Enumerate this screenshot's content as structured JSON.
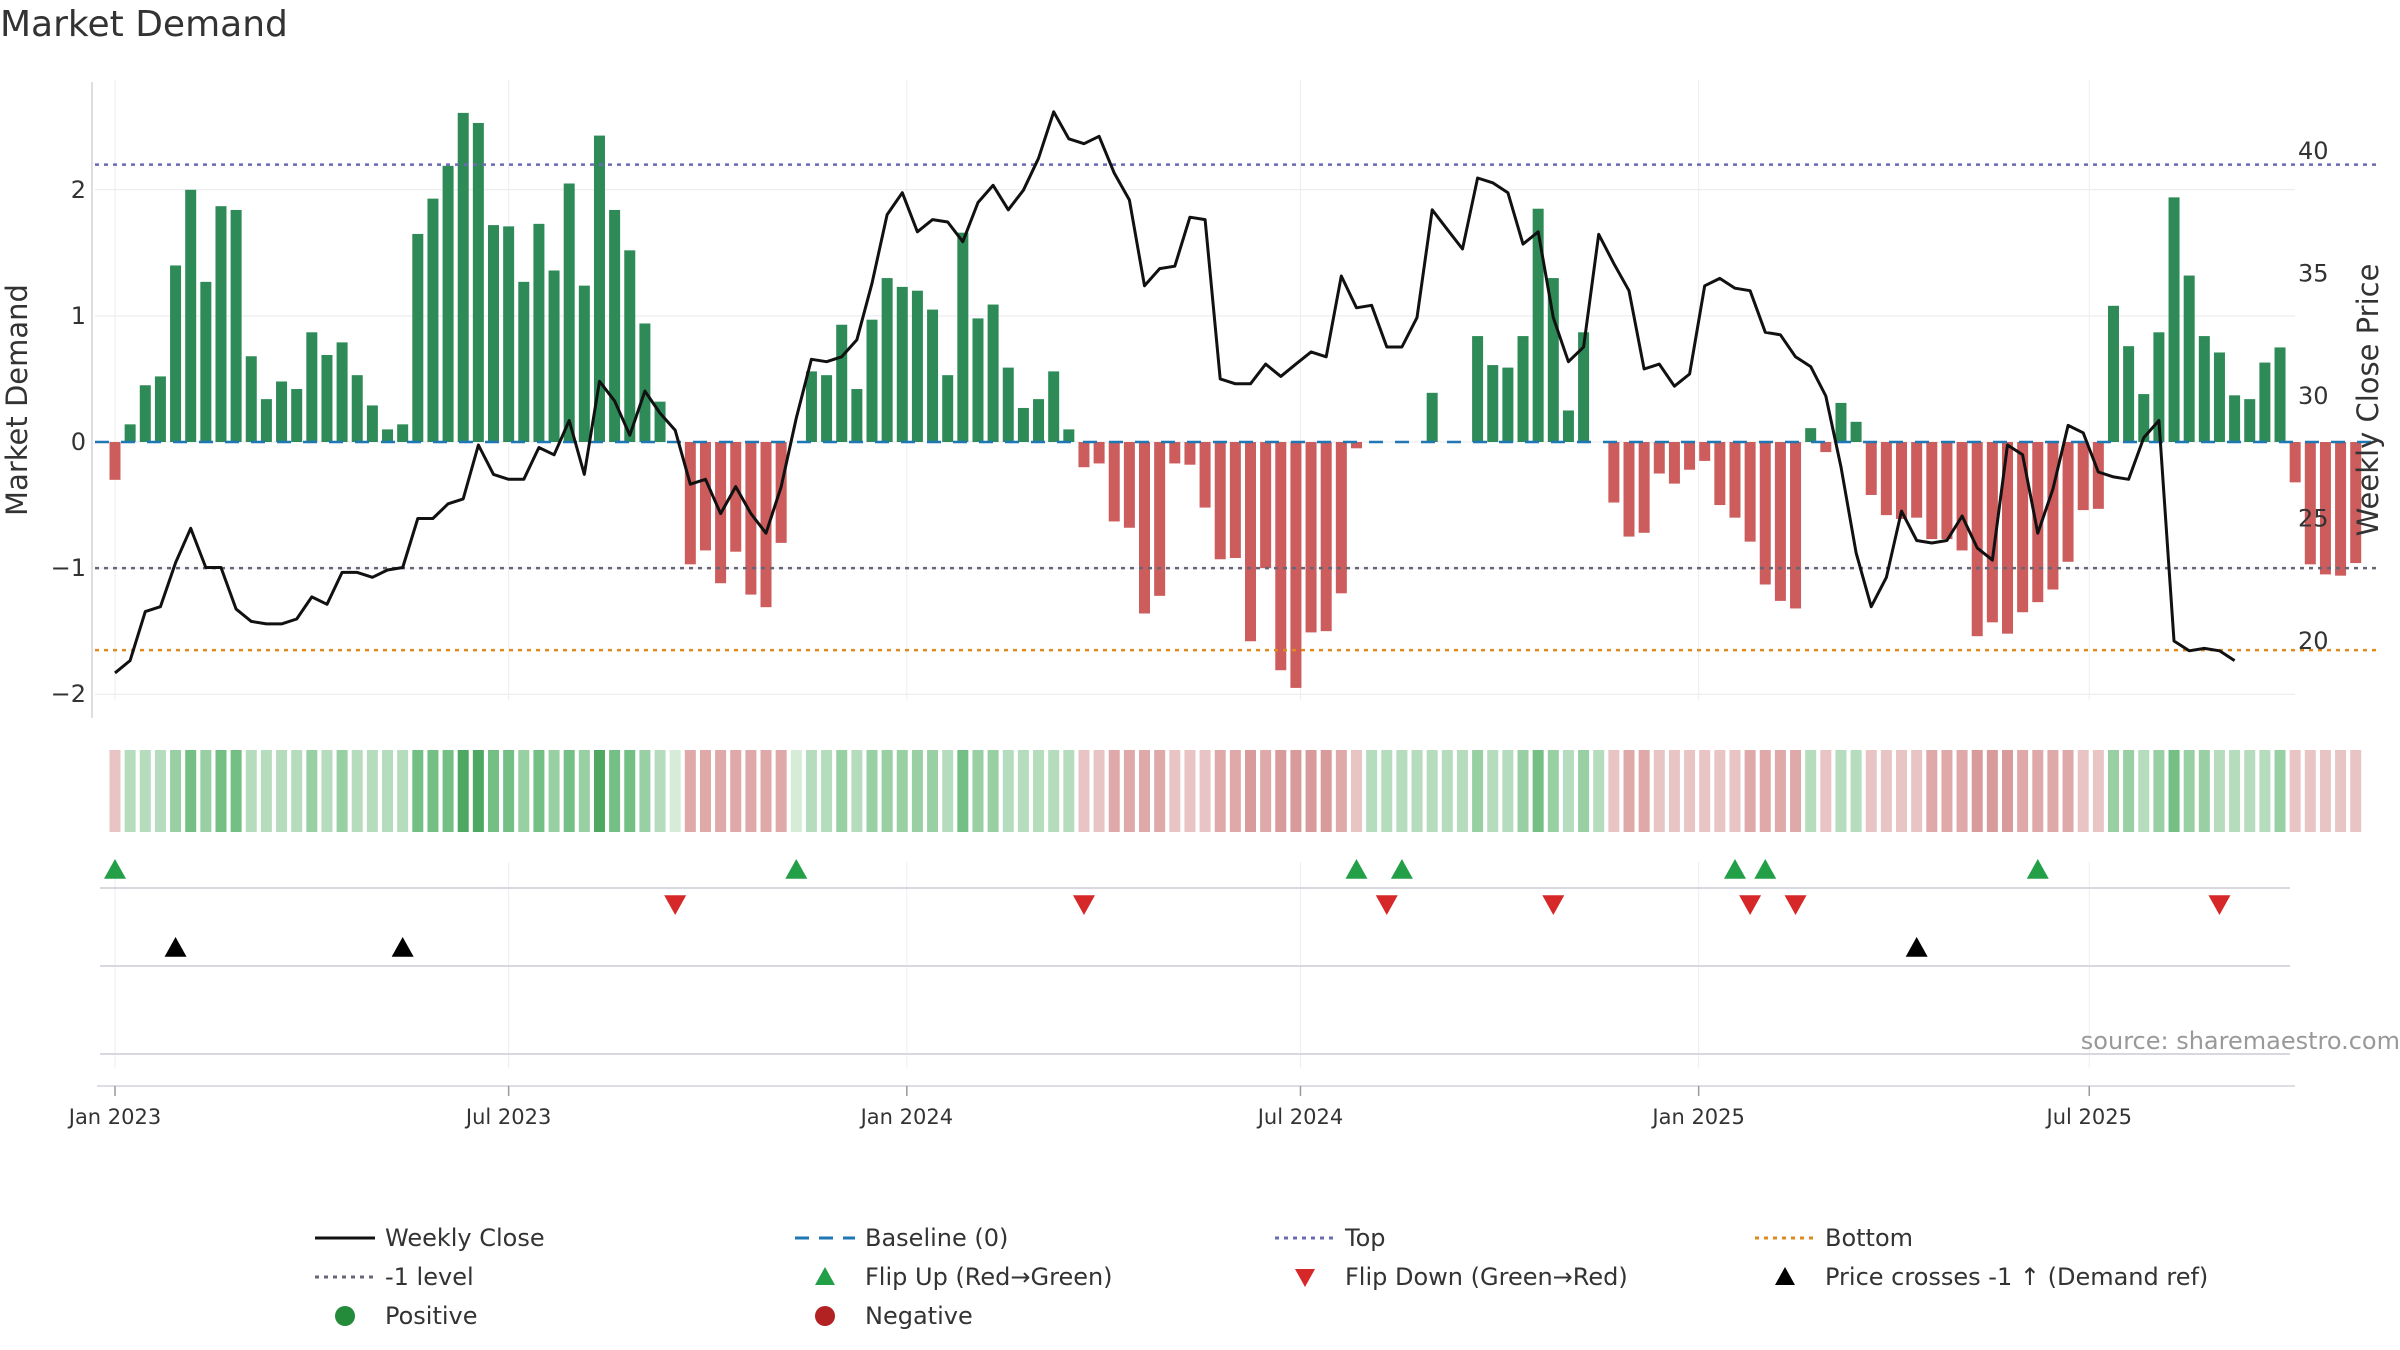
{
  "chart_data": {
    "type": "bar",
    "title": "Market Demand",
    "ylabel_left": "Market Demand",
    "ylabel_right": "Weekly Close Price",
    "ylim_left": [
      -2.2,
      2.85
    ],
    "ylim_right": [
      17,
      43
    ],
    "left_ticks": [
      2,
      1,
      0,
      -1,
      -2
    ],
    "left_tick_labels": [
      "2",
      "1",
      "0",
      "−1",
      "−2"
    ],
    "right_ticks": [
      40,
      35,
      30,
      25,
      20
    ],
    "right_tick_labels": [
      "40",
      "35",
      "30",
      "25",
      "20"
    ],
    "x_ticks": [
      {
        "label": "Jan 2023",
        "week": 0
      },
      {
        "label": "Jul 2023",
        "week": 26
      },
      {
        "label": "Jan 2024",
        "week": 52.3
      },
      {
        "label": "Jul 2024",
        "week": 78.3
      },
      {
        "label": "Jan 2025",
        "week": 104.6
      },
      {
        "label": "Jul 2025",
        "week": 130.4
      }
    ],
    "reference_lines": {
      "top": 2.2,
      "minus_one": -1,
      "bottom": -1.65,
      "baseline": 0
    },
    "demand": [
      -0.3,
      0.14,
      0.45,
      0.52,
      1.4,
      2.0,
      1.27,
      1.87,
      1.84,
      0.68,
      0.34,
      0.48,
      0.42,
      0.87,
      0.69,
      0.79,
      0.53,
      0.29,
      0.1,
      0.14,
      1.65,
      1.93,
      2.19,
      2.61,
      2.53,
      1.72,
      1.71,
      1.27,
      1.73,
      1.36,
      2.05,
      1.24,
      2.43,
      1.84,
      1.52,
      0.94,
      0.32,
      0.0,
      -0.97,
      -0.86,
      -1.12,
      -0.87,
      -1.21,
      -1.31,
      -0.8,
      0.0,
      0.56,
      0.53,
      0.93,
      0.42,
      0.97,
      1.3,
      1.23,
      1.2,
      1.05,
      0.53,
      1.66,
      0.98,
      1.09,
      0.59,
      0.27,
      0.34,
      0.56,
      0.1,
      -0.2,
      -0.17,
      -0.63,
      -0.68,
      -1.36,
      -1.22,
      -0.17,
      -0.18,
      -0.52,
      -0.93,
      -0.92,
      -1.58,
      -1.0,
      -1.81,
      -1.95,
      -1.51,
      -1.5,
      -1.2,
      -0.05,
      0.0,
      0.0,
      0.0,
      0.0,
      0.39,
      0.0,
      0.0,
      0.84,
      0.61,
      0.59,
      0.84,
      1.85,
      1.3,
      0.25,
      0.87,
      0.0,
      -0.48,
      -0.75,
      -0.72,
      -0.25,
      -0.33,
      -0.22,
      -0.15,
      -0.5,
      -0.6,
      -0.79,
      -1.13,
      -1.26,
      -1.32,
      0.11,
      -0.08,
      0.31,
      0.16,
      -0.42,
      -0.58,
      -0.61,
      -0.6,
      -0.77,
      -0.77,
      -0.86,
      -1.54,
      -1.43,
      -1.52,
      -1.35,
      -1.27,
      -1.17,
      -0.95,
      -0.54,
      -0.53,
      1.08,
      0.76,
      0.38,
      0.87,
      1.94,
      1.32,
      0.84,
      0.71,
      0.37,
      0.34,
      0.63,
      0.75,
      -0.32,
      -0.97,
      -1.05,
      -1.06,
      -0.96
    ],
    "price": [
      18.7,
      19.2,
      21.2,
      21.4,
      23.2,
      24.6,
      23.0,
      23.0,
      21.3,
      20.8,
      20.7,
      20.7,
      20.9,
      21.8,
      21.5,
      22.8,
      22.8,
      22.6,
      22.9,
      23.0,
      25.0,
      25.0,
      25.6,
      25.8,
      28.0,
      26.8,
      26.6,
      26.6,
      27.9,
      27.6,
      29.0,
      26.8,
      30.6,
      29.8,
      28.4,
      30.2,
      29.3,
      28.6,
      26.4,
      26.6,
      25.2,
      26.3,
      25.2,
      24.4,
      26.3,
      29.1,
      31.5,
      31.4,
      31.6,
      32.3,
      34.6,
      37.4,
      38.3,
      36.7,
      37.2,
      37.1,
      36.3,
      37.9,
      38.6,
      37.6,
      38.4,
      39.7,
      41.6,
      40.5,
      40.3,
      40.6,
      39.1,
      38.0,
      34.5,
      35.2,
      35.3,
      37.3,
      37.2,
      30.7,
      30.5,
      30.5,
      31.3,
      30.8,
      31.3,
      31.8,
      31.6,
      34.9,
      33.6,
      33.7,
      32.0,
      32.0,
      33.2,
      37.6,
      36.8,
      36.0,
      38.9,
      38.7,
      38.3,
      36.2,
      36.7,
      33.2,
      31.4,
      32.0,
      36.6,
      35.4,
      34.3,
      31.1,
      31.3,
      30.4,
      30.9,
      34.5,
      34.8,
      34.4,
      34.3,
      32.6,
      32.5,
      31.6,
      31.2,
      30.0,
      27.1,
      23.6,
      21.4,
      22.6,
      25.3,
      24.1,
      24.0,
      24.1,
      25.1,
      23.8,
      23.3,
      28.0,
      27.6,
      24.4,
      26.2,
      28.8,
      28.5,
      26.9,
      26.7,
      26.6,
      28.3,
      29.0,
      20.0,
      19.6,
      19.7,
      19.6,
      19.2
    ],
    "shade_intensity": [
      -1,
      1,
      1,
      1,
      2,
      3,
      2,
      3,
      3,
      1,
      1,
      1,
      1,
      2,
      1,
      2,
      1,
      1,
      1,
      1,
      3,
      3,
      3,
      4,
      4,
      3,
      3,
      2,
      3,
      2,
      3,
      2,
      4,
      3,
      3,
      2,
      1,
      0,
      -2,
      -2,
      -2,
      -2,
      -2,
      -2,
      -2,
      0,
      1,
      1,
      2,
      1,
      2,
      2,
      2,
      2,
      2,
      1,
      3,
      2,
      2,
      1,
      1,
      1,
      1,
      1,
      -1,
      -1,
      -2,
      -2,
      -2,
      -2,
      -1,
      -1,
      -1,
      -2,
      -2,
      -3,
      -2,
      -3,
      -3,
      -3,
      -3,
      -2,
      -1,
      1,
      1,
      1,
      1,
      1,
      1,
      1,
      2,
      1,
      1,
      2,
      3,
      2,
      1,
      2,
      1,
      -1,
      -2,
      -2,
      -1,
      -1,
      -1,
      -1,
      -1,
      -1,
      -2,
      -2,
      -2,
      -2,
      1,
      -1,
      1,
      1,
      -1,
      -1,
      -1,
      -1,
      -2,
      -2,
      -2,
      -3,
      -3,
      -3,
      -2,
      -2,
      -2,
      -2,
      -1,
      -1,
      2,
      2,
      1,
      2,
      3,
      2,
      2,
      1,
      1,
      1,
      1,
      2,
      -1,
      -1,
      -1,
      -1,
      -1
    ],
    "markers": {
      "flip_up_weeks": [
        0,
        45,
        82,
        85,
        107,
        109,
        127
      ],
      "flip_down_weeks": [
        37,
        64,
        84,
        95,
        108,
        111,
        139
      ],
      "price_cross_weeks": [
        4,
        19,
        119
      ]
    },
    "series": [
      {
        "name": "Weekly Close",
        "kind": "line",
        "axis": "right"
      },
      {
        "name": "Market Demand",
        "kind": "bar",
        "axis": "left"
      }
    ],
    "legend": {
      "placement": "bottom-center",
      "entries": [
        {
          "label": "Weekly Close",
          "symbol": "line-solid",
          "color": "#111111"
        },
        {
          "label": "Baseline (0)",
          "symbol": "line-dashed",
          "color": "#1f77b4"
        },
        {
          "label": "Top",
          "symbol": "line-dotted",
          "color": "#6b6bb5"
        },
        {
          "label": "Bottom",
          "symbol": "line-dotted",
          "color": "#e08a1e"
        },
        {
          "label": "-1 level",
          "symbol": "line-dotted",
          "color": "#666677"
        },
        {
          "label": "Flip Up (Red→Green)",
          "symbol": "triangle-up",
          "color": "#23a047"
        },
        {
          "label": "Flip Down (Green→Red)",
          "symbol": "triangle-down",
          "color": "#d62828"
        },
        {
          "label": "Price crosses -1 ↑ (Demand ref)",
          "symbol": "triangle-up",
          "color": "#000000"
        },
        {
          "label": "Positive",
          "symbol": "circle",
          "color": "#238b3a"
        },
        {
          "label": "Negative",
          "symbol": "circle",
          "color": "#b22222"
        }
      ]
    },
    "source_note": "source: sharemaestro.com"
  },
  "colors": {
    "positive": "#2e8b57",
    "negative": "#cd5c5c",
    "price_line": "#111111",
    "top_line": "#6b6bb5",
    "bottom_line": "#e08a1e",
    "minus_one_line": "#666677",
    "baseline": "#1f77b4",
    "flip_up": "#23a047",
    "flip_down": "#d62828",
    "cross": "#000000"
  }
}
